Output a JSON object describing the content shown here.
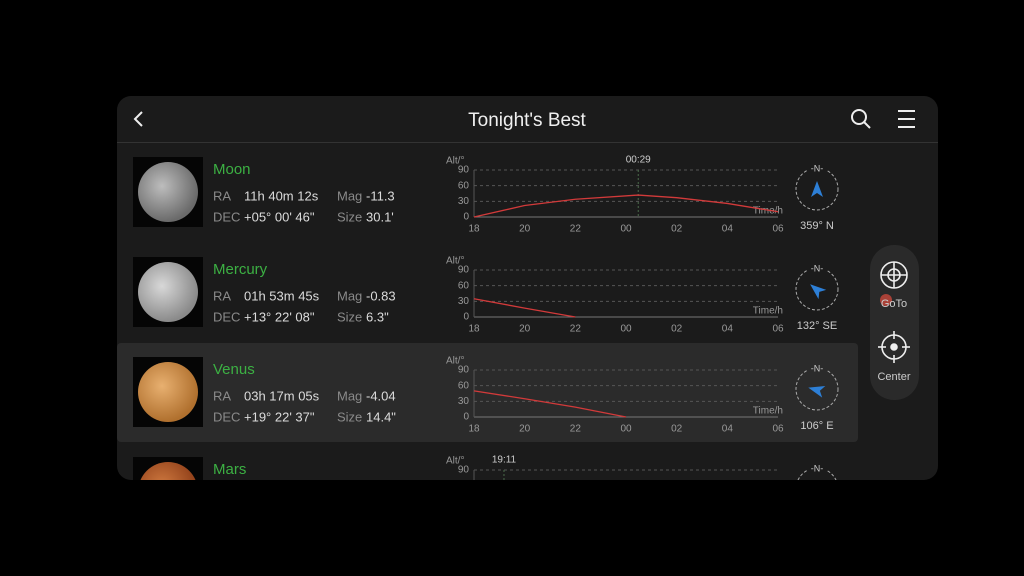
{
  "header": {
    "title": "Tonight's Best"
  },
  "altitude_axes": {
    "xlim": [
      18,
      30
    ],
    "xticks": [
      18,
      20,
      22,
      {
        "value": 24,
        "label": "00"
      },
      {
        "value": 26,
        "label": "02"
      },
      {
        "value": 28,
        "label": "04"
      },
      {
        "value": 30,
        "label": "06"
      }
    ],
    "ylim": [
      0,
      90
    ],
    "yticks": [
      0,
      30,
      60,
      90
    ],
    "y_label": "Alt/°",
    "x_label": "Time/h",
    "color": "#d23a3a"
  },
  "objects": [
    {
      "name": "Moon",
      "ra_label": "RA",
      "ra": "11h 40m 12s",
      "mag_label": "Mag",
      "mag": "-11.3",
      "dec_label": "DEC",
      "dec": "+05° 00' 46\"",
      "size_label": "Size",
      "size": "30.1'",
      "compass": "-N-",
      "azimuth": "359° N",
      "transit": "00:29",
      "altitude": {
        "x": [
          18,
          20,
          22,
          24.48,
          26,
          28,
          30
        ],
        "values": [
          0,
          22,
          34,
          42,
          37,
          26,
          10
        ]
      }
    },
    {
      "name": "Mercury",
      "ra_label": "RA",
      "ra": "01h 53m 45s",
      "mag_label": "Mag",
      "mag": "-0.83",
      "dec_label": "DEC",
      "dec": "+13° 22' 08\"",
      "size_label": "Size",
      "size": "6.3\"",
      "compass": "-N-",
      "azimuth": "132° SE",
      "altitude": {
        "x": [
          18,
          20,
          22
        ],
        "values": [
          35,
          17,
          0
        ]
      }
    },
    {
      "name": "Venus",
      "ra_label": "RA",
      "ra": "03h 17m 05s",
      "mag_label": "Mag",
      "mag": "-4.04",
      "dec_label": "DEC",
      "dec": "+19° 22' 37\"",
      "size_label": "Size",
      "size": "14.4\"",
      "compass": "-N-",
      "azimuth": "106° E",
      "altitude": {
        "x": [
          18,
          20,
          22,
          24
        ],
        "values": [
          50,
          35,
          19,
          0
        ]
      }
    },
    {
      "name": "Mars",
      "compass": "-N-",
      "transit": "19:11"
    }
  ],
  "actions": [
    {
      "label": "GoTo"
    },
    {
      "label": "Center"
    }
  ]
}
